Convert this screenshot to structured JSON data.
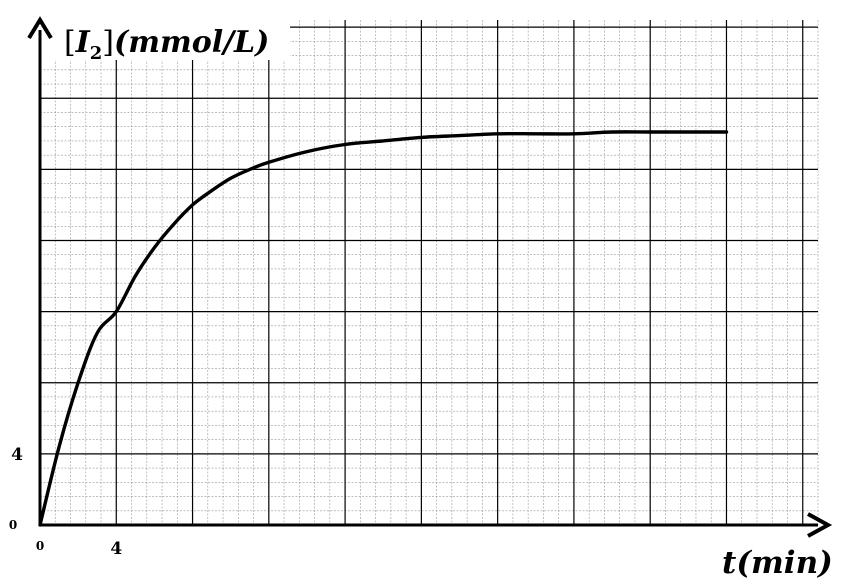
{
  "chart_data": {
    "type": "line",
    "title": "",
    "ylabel": "[I2](mmol/L)",
    "ylabel_parts": {
      "bracket_open": "[",
      "symbol": "I",
      "subscript": "2",
      "bracket_close": "]",
      "unit": "(mmol/L)"
    },
    "xlabel": "t(min)",
    "xlabel_parts": {
      "symbol": "t",
      "unit": "(min)"
    },
    "xlim": [
      0,
      40.8
    ],
    "ylim": [
      0,
      28.4
    ],
    "grid": true,
    "x_ticks": [
      {
        "value": 0,
        "label": "0"
      },
      {
        "value": 4,
        "label": "4"
      }
    ],
    "y_ticks": [
      {
        "value": 0,
        "label": "0"
      },
      {
        "value": 4,
        "label": "4"
      }
    ],
    "series": [
      {
        "x": [
          0,
          1,
          2,
          3,
          4,
          5,
          6,
          7,
          8,
          9,
          10,
          11,
          12,
          14,
          16,
          18,
          20,
          22,
          24,
          26,
          28,
          30,
          32,
          34,
          36
        ],
        "y": [
          0,
          4.4,
          8.0,
          10.8,
          12.0,
          14.0,
          15.6,
          16.9,
          18.0,
          18.8,
          19.5,
          20.0,
          20.4,
          21.0,
          21.4,
          21.6,
          21.8,
          21.9,
          22.0,
          22.0,
          22.0,
          22.1,
          22.1,
          22.1,
          22.1
        ]
      }
    ],
    "colors": {
      "grid_major": "#000000",
      "grid_minor": "#9a9a9a",
      "curve": "#000000",
      "axes": "#000000"
    }
  }
}
